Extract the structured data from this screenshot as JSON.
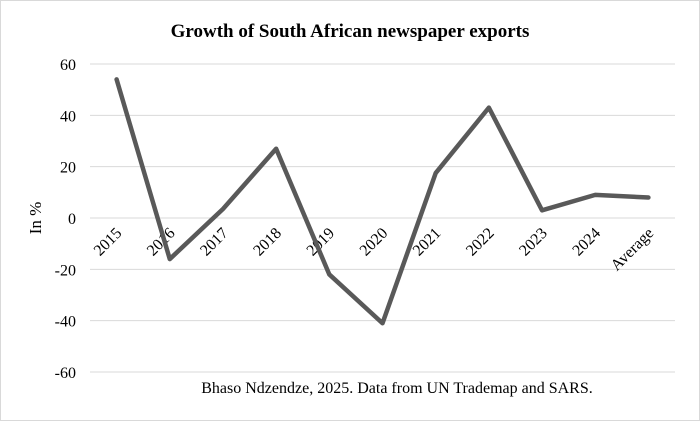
{
  "chart_data": {
    "type": "line",
    "title": "Growth of South African newspaper exports",
    "xlabel": "",
    "ylabel": "In %",
    "categories": [
      "2015",
      "2016",
      "2017",
      "2018",
      "2019",
      "2020",
      "2021",
      "2022",
      "2023",
      "2024",
      "Average"
    ],
    "series": [
      {
        "name": "Growth",
        "values": [
          54,
          -16,
          3.5,
          27,
          -22,
          -41,
          17.5,
          43,
          3,
          9,
          8
        ]
      }
    ],
    "ylim": [
      -60,
      60
    ],
    "yticks": [
      60,
      40,
      20,
      0,
      -20,
      -40,
      -60
    ],
    "grid": true,
    "legend": "none",
    "line_color": "#595959",
    "annotation": "Bhaso Ndzendze, 2025. Data from UN Trademap and SARS."
  }
}
